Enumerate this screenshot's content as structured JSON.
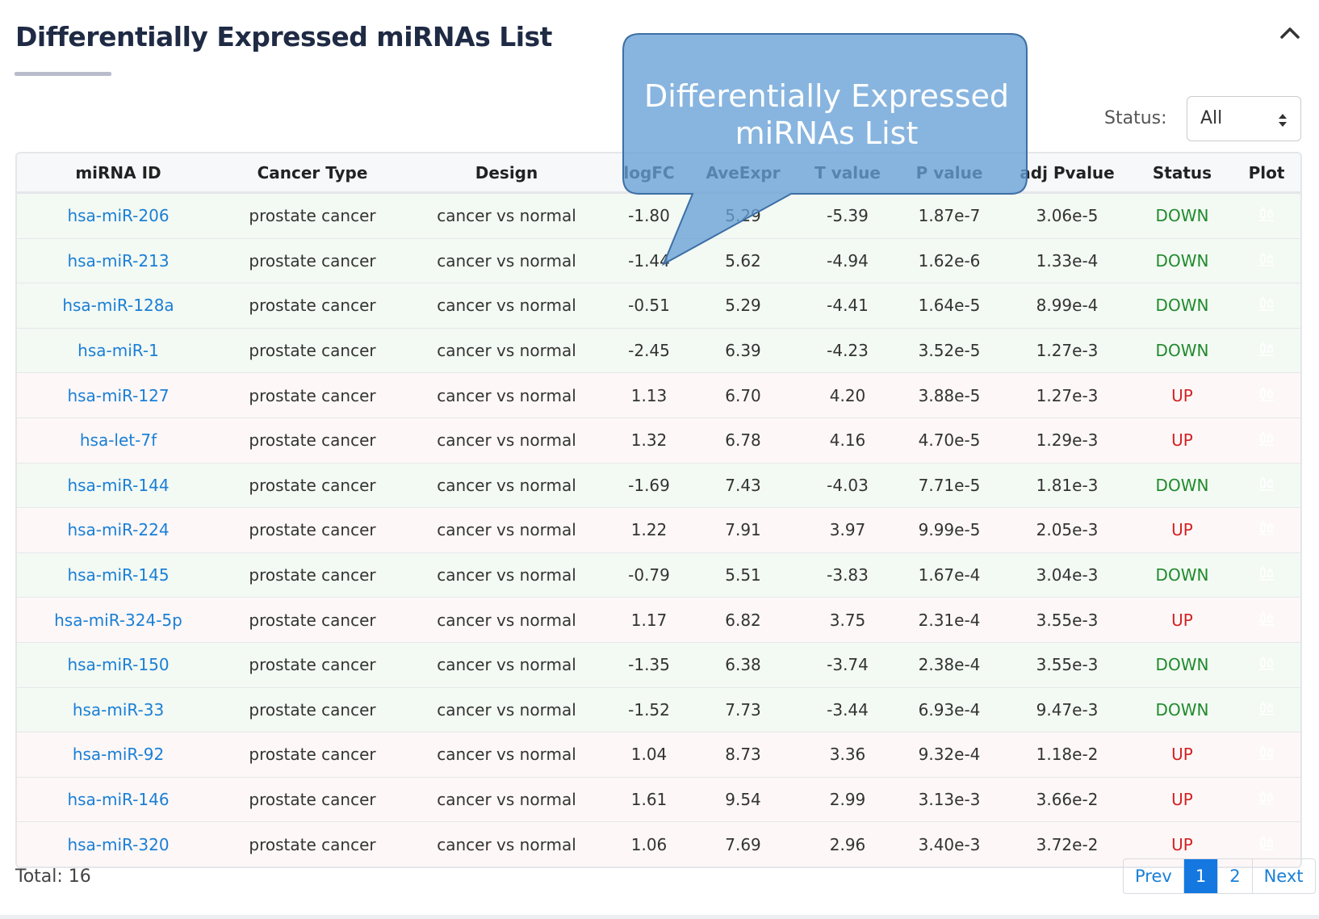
{
  "header": {
    "title": "Differentially Expressed miRNAs List"
  },
  "filter": {
    "label": "Status:",
    "value": "All"
  },
  "table": {
    "columns": [
      "miRNA ID",
      "Cancer Type",
      "Design",
      "logFC",
      "AveExpr",
      "T value",
      "P value",
      "adj Pvalue",
      "Status",
      "Plot"
    ],
    "rows": [
      [
        "hsa-miR-206",
        "prostate cancer",
        "cancer vs normal",
        "-1.80",
        "5.29",
        "-5.39",
        "1.87e-7",
        "3.06e-5",
        "DOWN"
      ],
      [
        "hsa-miR-213",
        "prostate cancer",
        "cancer vs normal",
        "-1.44",
        "5.62",
        "-4.94",
        "1.62e-6",
        "1.33e-4",
        "DOWN"
      ],
      [
        "hsa-miR-128a",
        "prostate cancer",
        "cancer vs normal",
        "-0.51",
        "5.29",
        "-4.41",
        "1.64e-5",
        "8.99e-4",
        "DOWN"
      ],
      [
        "hsa-miR-1",
        "prostate cancer",
        "cancer vs normal",
        "-2.45",
        "6.39",
        "-4.23",
        "3.52e-5",
        "1.27e-3",
        "DOWN"
      ],
      [
        "hsa-miR-127",
        "prostate cancer",
        "cancer vs normal",
        "1.13",
        "6.70",
        "4.20",
        "3.88e-5",
        "1.27e-3",
        "UP"
      ],
      [
        "hsa-let-7f",
        "prostate cancer",
        "cancer vs normal",
        "1.32",
        "6.78",
        "4.16",
        "4.70e-5",
        "1.29e-3",
        "UP"
      ],
      [
        "hsa-miR-144",
        "prostate cancer",
        "cancer vs normal",
        "-1.69",
        "7.43",
        "-4.03",
        "7.71e-5",
        "1.81e-3",
        "DOWN"
      ],
      [
        "hsa-miR-224",
        "prostate cancer",
        "cancer vs normal",
        "1.22",
        "7.91",
        "3.97",
        "9.99e-5",
        "2.05e-3",
        "UP"
      ],
      [
        "hsa-miR-145",
        "prostate cancer",
        "cancer vs normal",
        "-0.79",
        "5.51",
        "-3.83",
        "1.67e-4",
        "3.04e-3",
        "DOWN"
      ],
      [
        "hsa-miR-324-5p",
        "prostate cancer",
        "cancer vs normal",
        "1.17",
        "6.82",
        "3.75",
        "2.31e-4",
        "3.55e-3",
        "UP"
      ],
      [
        "hsa-miR-150",
        "prostate cancer",
        "cancer vs normal",
        "-1.35",
        "6.38",
        "-3.74",
        "2.38e-4",
        "3.55e-3",
        "DOWN"
      ],
      [
        "hsa-miR-33",
        "prostate cancer",
        "cancer vs normal",
        "-1.52",
        "7.73",
        "-3.44",
        "6.93e-4",
        "9.47e-3",
        "DOWN"
      ],
      [
        "hsa-miR-92",
        "prostate cancer",
        "cancer vs normal",
        "1.04",
        "8.73",
        "3.36",
        "9.32e-4",
        "1.18e-2",
        "UP"
      ],
      [
        "hsa-miR-146",
        "prostate cancer",
        "cancer vs normal",
        "1.61",
        "9.54",
        "2.99",
        "3.13e-3",
        "3.66e-2",
        "UP"
      ],
      [
        "hsa-miR-320",
        "prostate cancer",
        "cancer vs normal",
        "1.06",
        "7.69",
        "2.96",
        "3.40e-3",
        "3.72e-2",
        "UP"
      ]
    ]
  },
  "footer": {
    "total": "Total: 16",
    "pages": [
      "Prev",
      "1",
      "2",
      "Next"
    ]
  },
  "tooltip": {
    "text": "Differentially Expressed miRNAs List"
  }
}
